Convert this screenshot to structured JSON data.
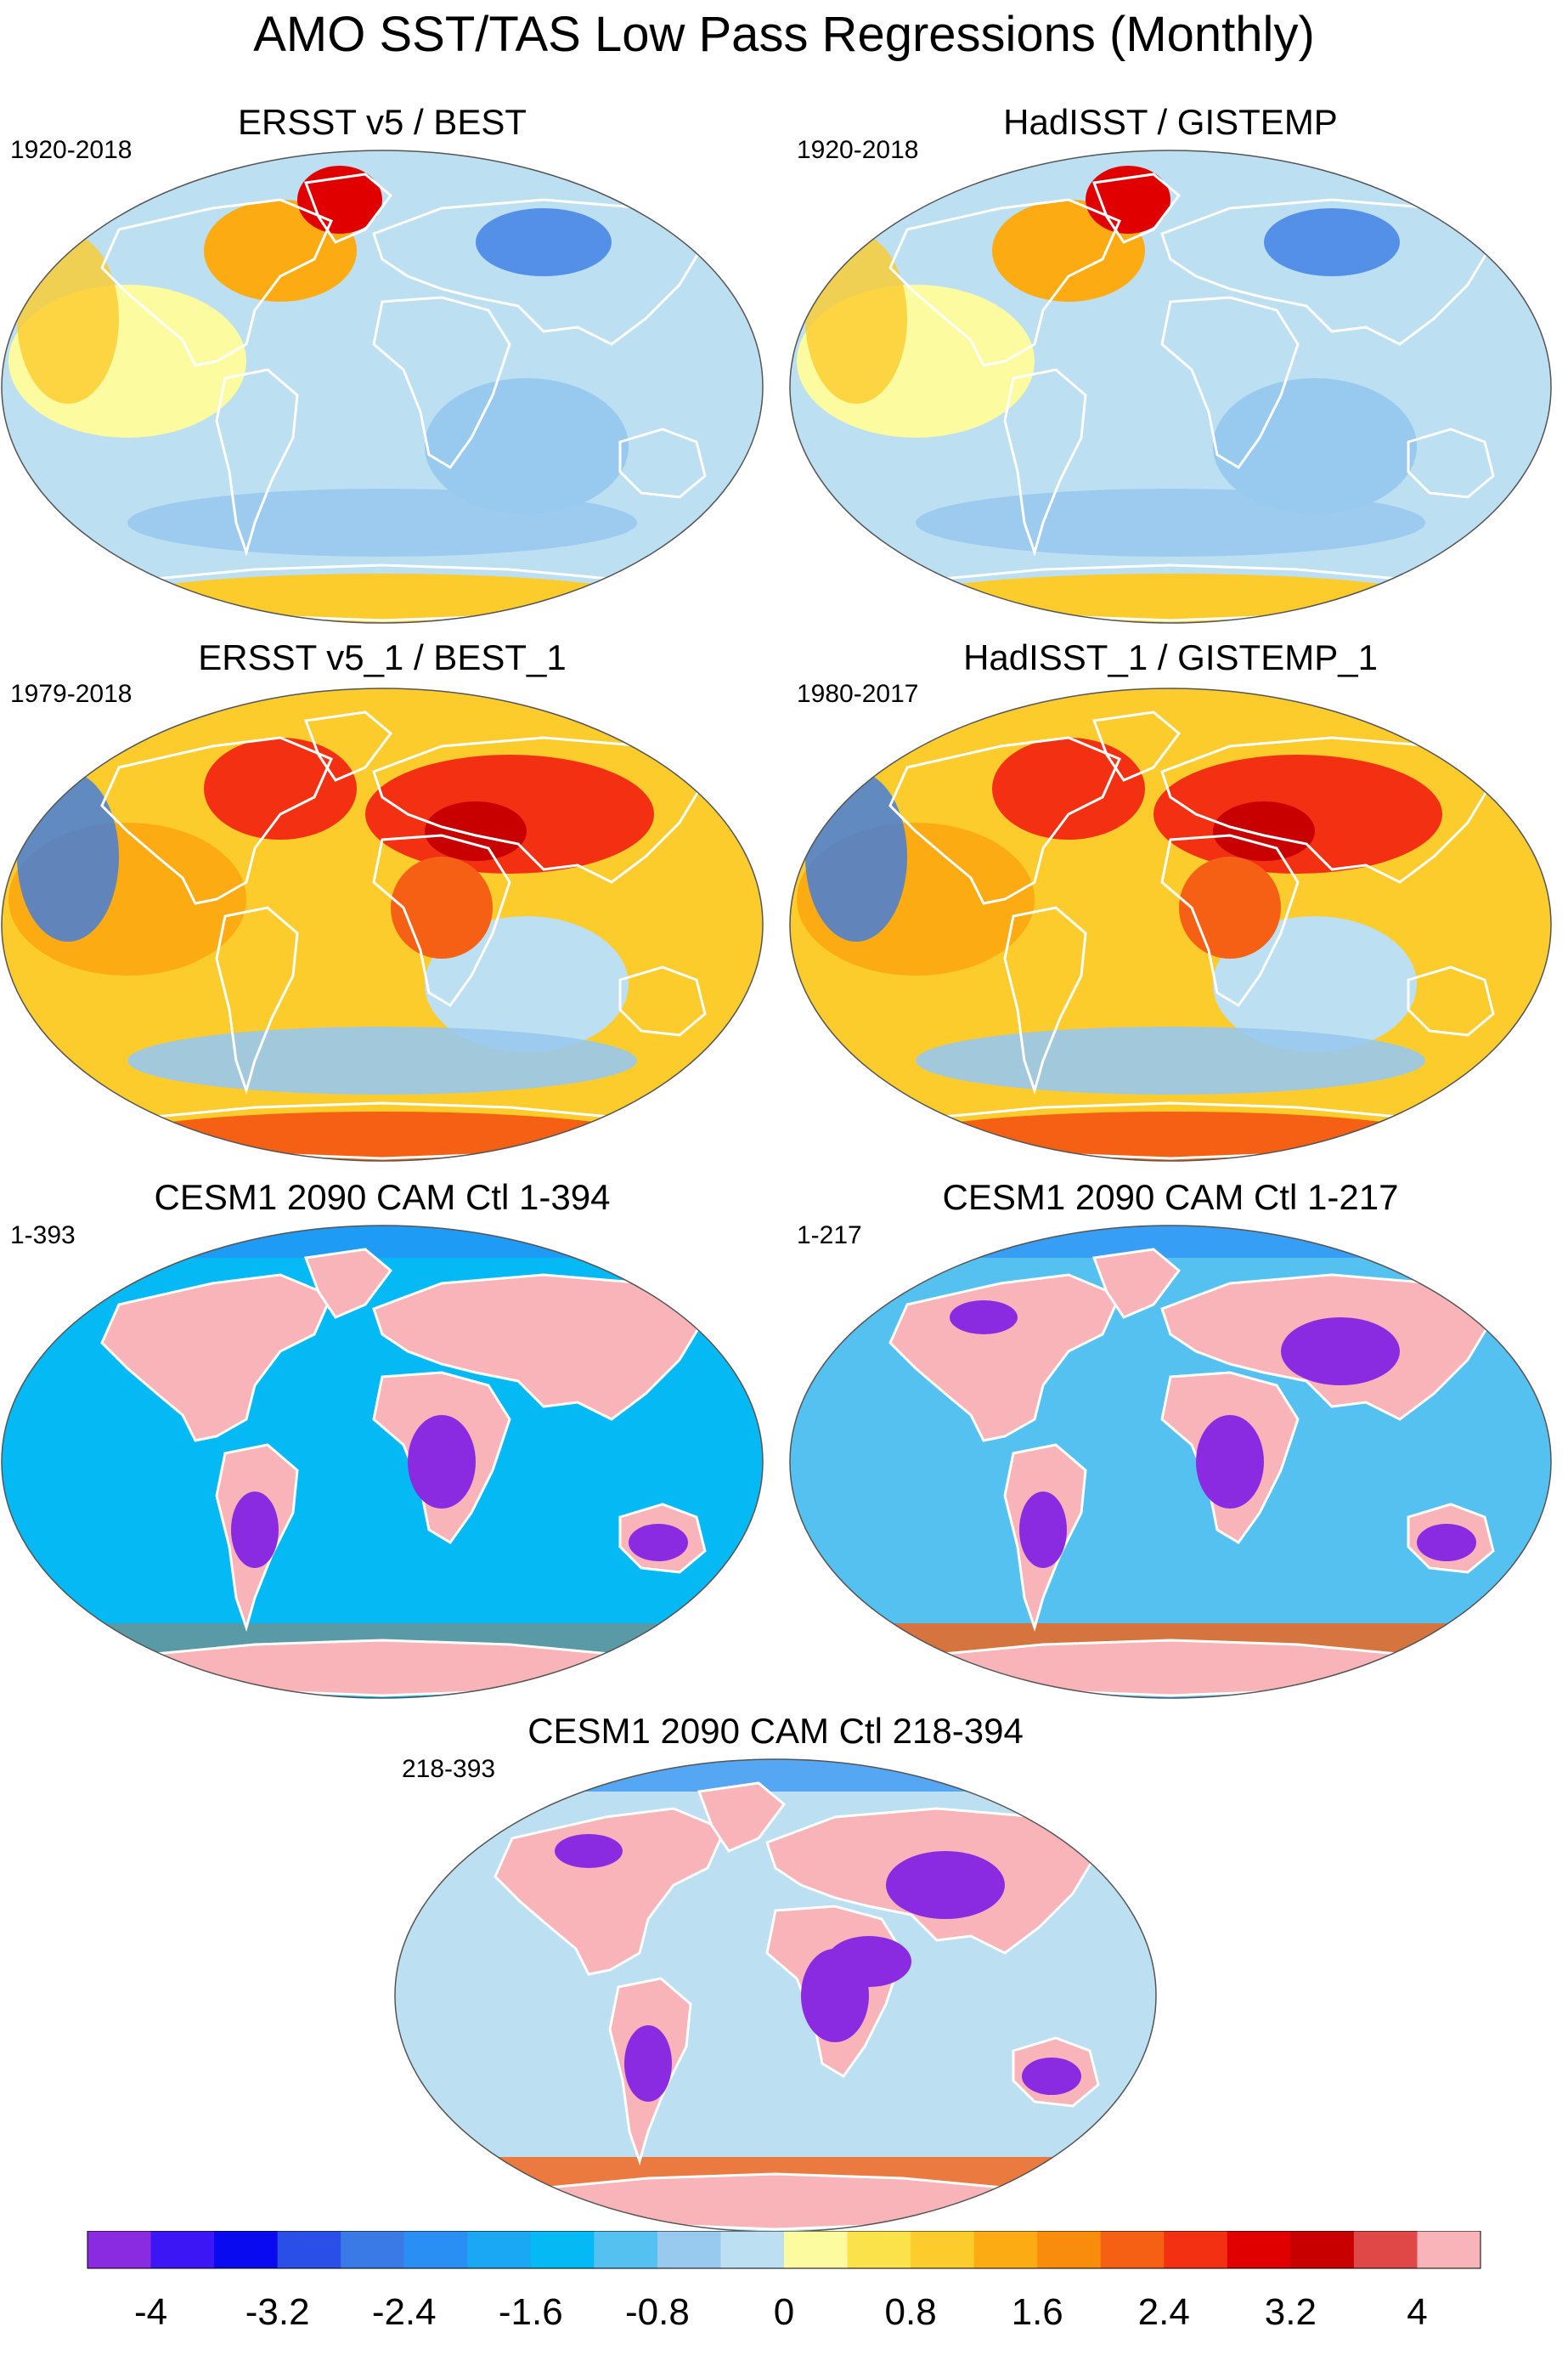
{
  "title": "AMO SST/TAS Low Pass Regressions (Monthly)",
  "panels": [
    {
      "title": "ERSST v5 / BEST",
      "period": "1920-2018",
      "style": "obs-moderate"
    },
    {
      "title": "HadISST / GISTEMP",
      "period": "1920-2018",
      "style": "obs-moderate"
    },
    {
      "title": "ERSST v5_1 / BEST_1",
      "period": "1979-2018",
      "style": "obs-warm"
    },
    {
      "title": "HadISST_1 / GISTEMP_1",
      "period": "1980-2017",
      "style": "obs-warm"
    },
    {
      "title": "CESM1 2090 CAM Ctl 1-394",
      "period": "1-393",
      "style": "model",
      "ocean_color": "#05b9f5"
    },
    {
      "title": "CESM1 2090 CAM Ctl 1-217",
      "period": "1-217",
      "style": "model",
      "ocean_color": "#55c1f1"
    },
    {
      "title": "CESM1 2090 CAM Ctl 218-394",
      "period": "218-393",
      "style": "model",
      "ocean_color": "#bcdff1"
    }
  ],
  "chart_data": {
    "type": "heatmap",
    "projection": "Winkel tripel global maps",
    "colorbar": {
      "colors": [
        "#8a2be2",
        "#3c16f5",
        "#0a0af0",
        "#2a4fe8",
        "#3a7ae6",
        "#2a8ff5",
        "#1aa8f5",
        "#05b9f5",
        "#55c1f1",
        "#98c9ee",
        "#bcdff1",
        "#fdfba0",
        "#fbe14a",
        "#fccc2c",
        "#fcac12",
        "#f98c0a",
        "#f66014",
        "#f33012",
        "#e00000",
        "#c80000",
        "#e04848",
        "#f8b4b8"
      ],
      "tick_labels": [
        "-4",
        "-3.2",
        "-2.4",
        "-1.6",
        "-0.8",
        "0",
        "0.8",
        "1.6",
        "2.4",
        "3.2",
        "4"
      ],
      "ticks": [
        -4,
        -3.2,
        -2.4,
        -1.6,
        -0.8,
        0,
        0.8,
        1.6,
        2.4,
        3.2,
        4
      ]
    }
  }
}
